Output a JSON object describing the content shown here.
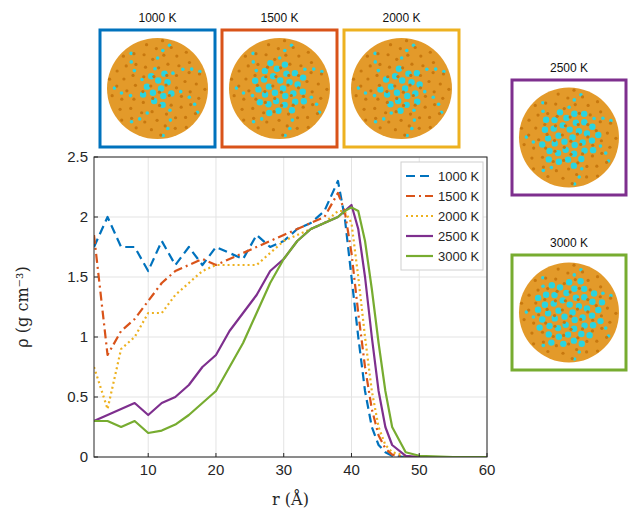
{
  "chart_data": {
    "type": "line",
    "x_label": "r (Å)",
    "y_label": "ρ (g cm⁻³)",
    "x": [
      2,
      4,
      6,
      8,
      10,
      12,
      14,
      16,
      18,
      20,
      22,
      24,
      26,
      28,
      30,
      32,
      34,
      36,
      38,
      39,
      40,
      41,
      42,
      43,
      44,
      45,
      46,
      48,
      50,
      55,
      60
    ],
    "series": [
      {
        "name": "1000 K",
        "color": "#0072BD",
        "line_style": "dashed",
        "values": [
          1.75,
          2.0,
          1.75,
          1.75,
          1.55,
          1.8,
          1.6,
          1.75,
          1.6,
          1.75,
          1.7,
          1.65,
          1.85,
          1.75,
          1.8,
          1.9,
          1.95,
          2.05,
          2.3,
          2.0,
          1.5,
          1.0,
          0.55,
          0.25,
          0.1,
          0.04,
          0.01,
          0,
          0,
          0,
          0
        ]
      },
      {
        "name": "1500 K",
        "color": "#D95319",
        "line_style": "dashdot",
        "values": [
          1.85,
          0.85,
          1.05,
          1.15,
          1.3,
          1.45,
          1.55,
          1.6,
          1.65,
          1.6,
          1.65,
          1.7,
          1.75,
          1.8,
          1.85,
          1.9,
          1.95,
          2.0,
          2.2,
          2.05,
          1.7,
          1.2,
          0.75,
          0.4,
          0.18,
          0.07,
          0.02,
          0,
          0,
          0,
          0
        ]
      },
      {
        "name": "2000 K",
        "color": "#EDB120",
        "line_style": "dotted",
        "values": [
          0.75,
          0.4,
          0.9,
          1.0,
          1.2,
          1.2,
          1.35,
          1.45,
          1.55,
          1.6,
          1.6,
          1.6,
          1.6,
          1.7,
          1.8,
          1.85,
          1.9,
          1.95,
          2.05,
          2.05,
          1.95,
          1.5,
          1.0,
          0.55,
          0.25,
          0.1,
          0.04,
          0.01,
          0,
          0,
          0
        ]
      },
      {
        "name": "2500 K",
        "color": "#7E2F8E",
        "line_style": "solid",
        "values": [
          0.3,
          0.35,
          0.4,
          0.45,
          0.35,
          0.45,
          0.5,
          0.6,
          0.75,
          0.85,
          1.05,
          1.2,
          1.35,
          1.55,
          1.65,
          1.8,
          1.9,
          1.95,
          2.0,
          2.05,
          2.1,
          1.9,
          1.5,
          1.0,
          0.55,
          0.25,
          0.1,
          0.01,
          0,
          0,
          0
        ]
      },
      {
        "name": "3000 K",
        "color": "#77AC30",
        "line_style": "solid",
        "values": [
          0.3,
          0.3,
          0.25,
          0.3,
          0.2,
          0.22,
          0.27,
          0.35,
          0.45,
          0.55,
          0.75,
          0.95,
          1.2,
          1.45,
          1.65,
          1.8,
          1.9,
          1.95,
          2.0,
          2.05,
          2.08,
          2.05,
          1.8,
          1.4,
          0.95,
          0.55,
          0.25,
          0.04,
          0.01,
          0,
          0
        ]
      }
    ],
    "xlim": [
      2,
      60
    ],
    "xticks": [
      10,
      20,
      30,
      40,
      50,
      60
    ],
    "ylim": [
      0,
      2.5
    ],
    "yticks": [
      0,
      0.5,
      1,
      1.5,
      2,
      2.5
    ],
    "grid": true,
    "legend": "upper right",
    "annotations": [
      {
        "text": "1000 K",
        "color": "#0072BD"
      },
      {
        "text": "1500 K",
        "color": "#D95319"
      },
      {
        "text": "2000 K",
        "color": "#EDB120"
      },
      {
        "text": "2500 K",
        "color": "#7E2F8E"
      },
      {
        "text": "3000 K",
        "color": "#77AC30"
      }
    ]
  }
}
